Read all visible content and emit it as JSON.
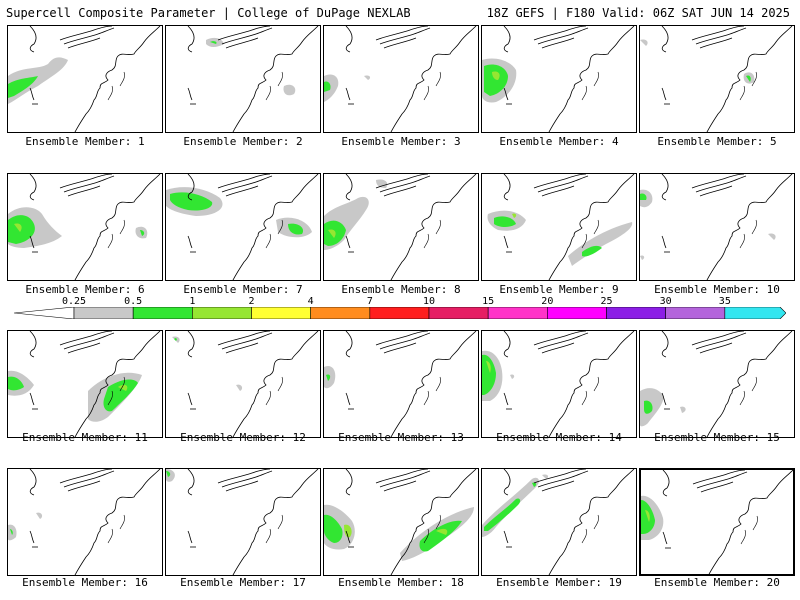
{
  "header": {
    "title": "Supercell Composite Parameter | College of DuPage NEXLAB",
    "valid": "18Z GEFS | F180 Valid: 06Z SAT JUN 14 2025"
  },
  "legend": {
    "ticks": [
      "0.25",
      "0.5",
      "1",
      "2",
      "4",
      "7",
      "10",
      "15",
      "20",
      "25",
      "30",
      "35"
    ],
    "colors": [
      "#c8c8c8",
      "#32e632",
      "#96e632",
      "#ffff32",
      "#ff8c1e",
      "#ff1e1e",
      "#e61e64",
      "#ff32c8",
      "#ff00ff",
      "#8c1ee6",
      "#b464dc",
      "#32e6f0"
    ],
    "low_end_color": "#ffffff"
  },
  "members": [
    {
      "caption": "Ensemble Member: 1",
      "selected": false
    },
    {
      "caption": "Ensemble Member: 2",
      "selected": false
    },
    {
      "caption": "Ensemble Member: 3",
      "selected": false
    },
    {
      "caption": "Ensemble Member: 4",
      "selected": false
    },
    {
      "caption": "Ensemble Member: 5",
      "selected": false
    },
    {
      "caption": "Ensemble Member: 6",
      "selected": false
    },
    {
      "caption": "Ensemble Member: 7",
      "selected": false
    },
    {
      "caption": "Ensemble Member: 8",
      "selected": false
    },
    {
      "caption": "Ensemble Member: 9",
      "selected": false
    },
    {
      "caption": "Ensemble Member: 10",
      "selected": false
    },
    {
      "caption": "Ensemble Member: 11",
      "selected": false
    },
    {
      "caption": "Ensemble Member: 12",
      "selected": false
    },
    {
      "caption": "Ensemble Member: 13",
      "selected": false
    },
    {
      "caption": "Ensemble Member: 14",
      "selected": false
    },
    {
      "caption": "Ensemble Member: 15",
      "selected": false
    },
    {
      "caption": "Ensemble Member: 16",
      "selected": false
    },
    {
      "caption": "Ensemble Member: 17",
      "selected": false
    },
    {
      "caption": "Ensemble Member: 18",
      "selected": false
    },
    {
      "caption": "Ensemble Member: 19",
      "selected": false
    },
    {
      "caption": "Ensemble Member: 20",
      "selected": true
    }
  ]
}
